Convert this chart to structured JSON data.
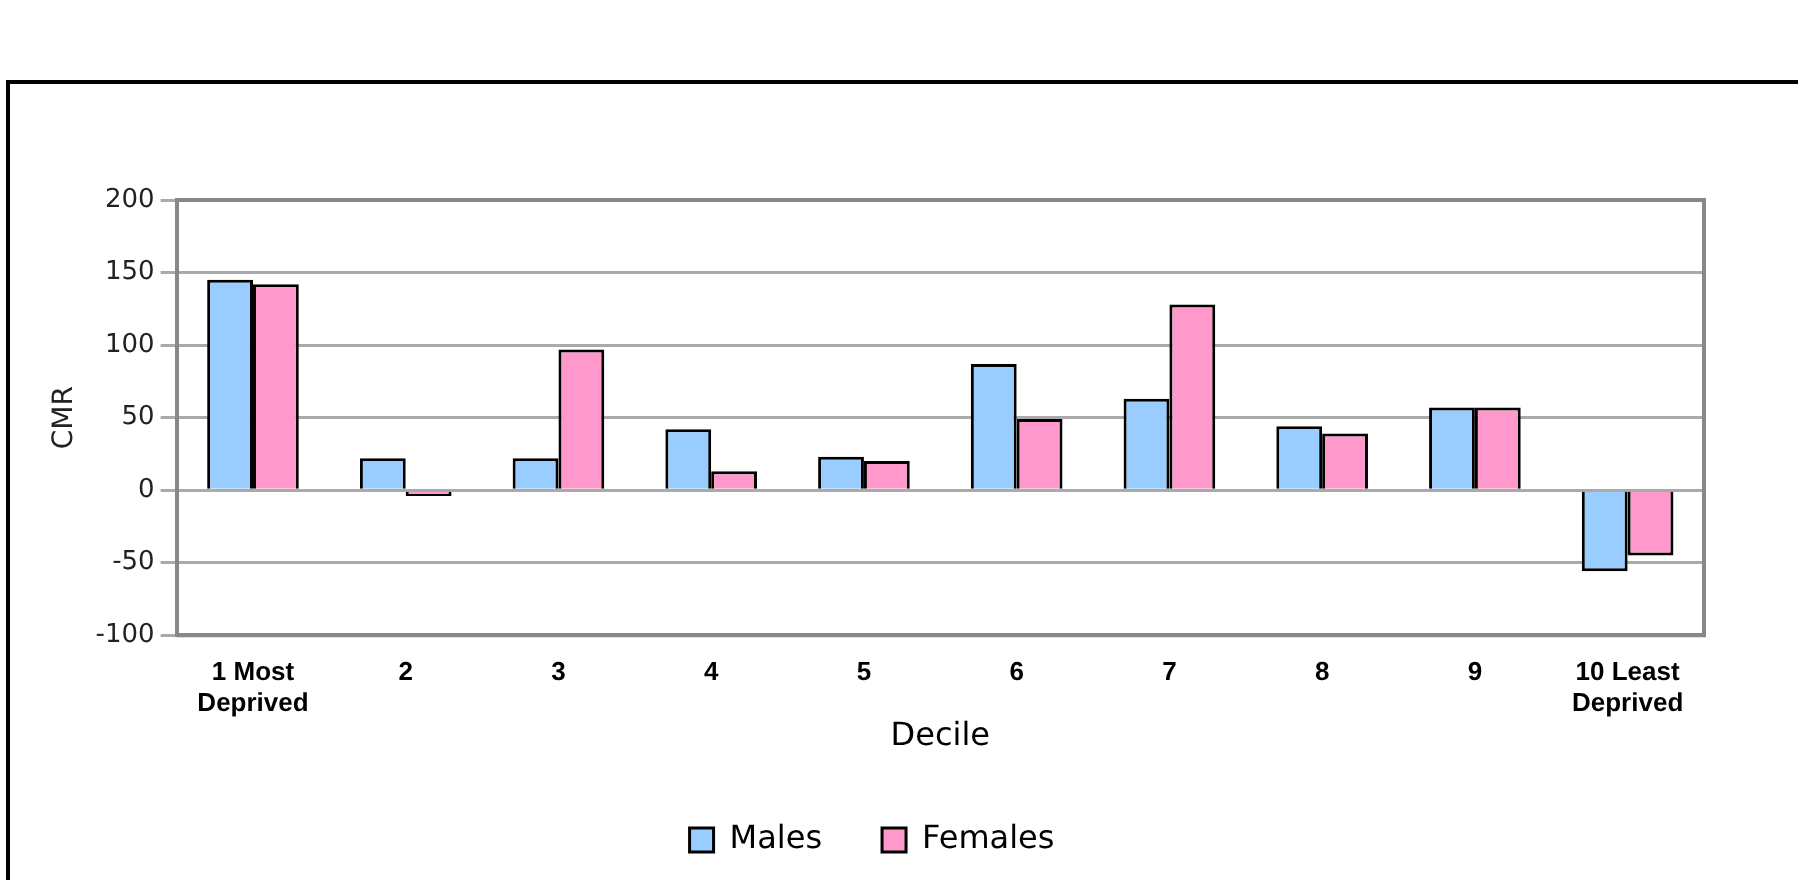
{
  "chart_data": {
    "type": "bar",
    "xlabel": "Decile",
    "ylabel": "CMR",
    "categories": [
      "1 Most Deprived",
      "2",
      "3",
      "4",
      "5",
      "6",
      "7",
      "8",
      "9",
      "10 Least Deprived"
    ],
    "series": [
      {
        "name": "Males",
        "color": "#99ccff",
        "values": [
          145,
          22,
          22,
          42,
          23,
          87,
          63,
          44,
          57,
          -56
        ]
      },
      {
        "name": "Females",
        "color": "#ff99cc",
        "values": [
          142,
          -4,
          97,
          13,
          20,
          49,
          128,
          39,
          57,
          -45
        ]
      }
    ],
    "ylim": [
      -100,
      200
    ],
    "yticks": [
      -100,
      -50,
      0,
      50,
      100,
      150,
      200
    ],
    "grid": "y",
    "legend": "bottom"
  }
}
